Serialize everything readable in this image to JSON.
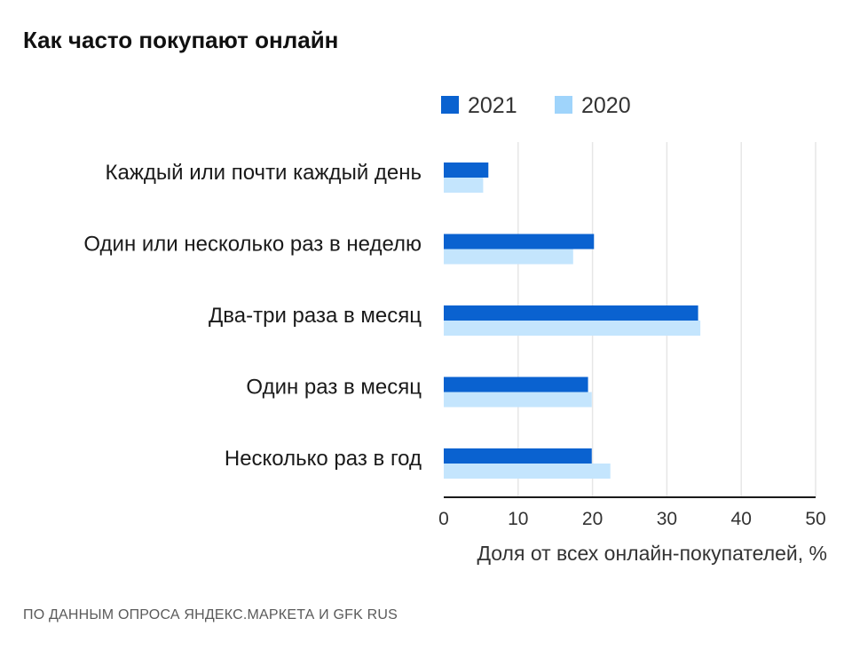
{
  "chart_data": {
    "type": "bar",
    "orientation": "horizontal",
    "title": "Как часто покупают онлайн",
    "categories": [
      "Каждый или почти каждый день",
      "Один или несколько раз в неделю",
      "Два-три раза в месяц",
      "Один раз в месяц",
      "Несколько раз в год"
    ],
    "series": [
      {
        "name": "2021",
        "color": "#0a62d0",
        "values": [
          6,
          20.2,
          34.2,
          19.4,
          19.9
        ]
      },
      {
        "name": "2020",
        "color": "#c4e5fd",
        "legend_color": "#9fd4fb",
        "values": [
          5.3,
          17.4,
          34.5,
          19.9,
          22.4
        ]
      }
    ],
    "xlim": [
      0,
      50
    ],
    "xticks": [
      "0",
      "10",
      "20",
      "30",
      "40",
      "50"
    ],
    "xlabel": "Доля от всех онлайн-покупателей, %",
    "ylabel": "",
    "grid": true,
    "legend_position": "top"
  },
  "footer": {
    "source": "ПО ДАННЫМ ОПРОСА ЯНДЕКС.МАРКЕТА И GFK RUS"
  }
}
